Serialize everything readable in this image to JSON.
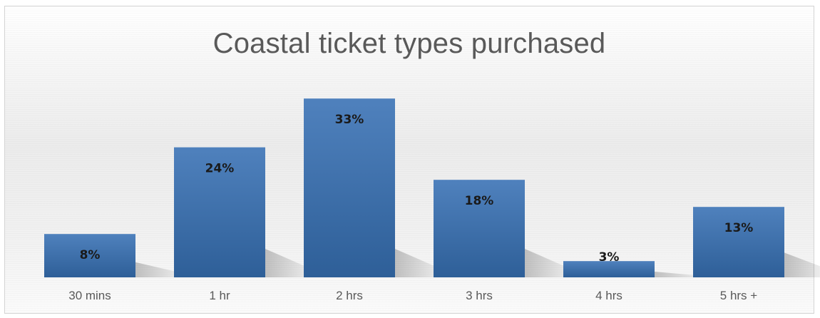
{
  "chart_data": {
    "type": "bar",
    "title": "Coastal ticket types purchased",
    "xlabel": "",
    "ylabel": "",
    "categories": [
      "30 mins",
      "1 hr",
      "2 hrs",
      "3 hrs",
      "4 hrs",
      "5 hrs +"
    ],
    "values": [
      8,
      24,
      33,
      18,
      3,
      13
    ],
    "data_labels": [
      "8%",
      "24%",
      "33%",
      "18%",
      "3%",
      "13%"
    ],
    "value_unit": "%",
    "ylim": [
      0,
      35
    ],
    "grid": false,
    "legend": "none",
    "colors": {
      "bar_top": "#4f81bd",
      "bar_bottom": "#2e5f98",
      "title": "#595959",
      "tick_label": "#595959",
      "data_label": "#1a1a1a"
    }
  }
}
